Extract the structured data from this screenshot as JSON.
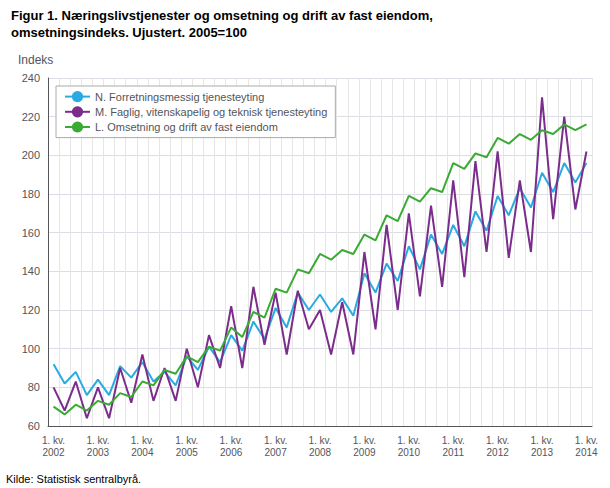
{
  "chart_data": {
    "type": "line",
    "title": "Figur 1. Næringslivstjenester og omsetning og drift av fast eiendom,",
    "subtitle": "omsetningsindeks. Ujustert. 2005=100",
    "ylabel": "Indeks",
    "annotations": [
      "Kilde: Statistisk sentralbyrå."
    ],
    "categories": [
      "1. kv.\n2002",
      null,
      null,
      null,
      "1. kv.\n2003",
      null,
      null,
      null,
      "1. kv.\n2004",
      null,
      null,
      null,
      "1. kv.\n2005",
      null,
      null,
      null,
      "1. kv.\n2006",
      null,
      null,
      null,
      "1. kv.\n2007",
      null,
      null,
      null,
      "1. kv.\n2008",
      null,
      null,
      null,
      "1. kv.\n2009",
      null,
      null,
      null,
      "1. kv.\n2010",
      null,
      null,
      null,
      "1. kv.\n2011",
      null,
      null,
      null,
      "1. kv.\n2012",
      null,
      null,
      null,
      "1. kv.\n2013",
      null,
      null,
      null,
      "1. kv.\n2014"
    ],
    "series": [
      {
        "name": "N. Forretningsmessig tjenesteyting",
        "color": "#29abe2",
        "values": [
          92,
          82,
          88,
          76,
          84,
          76,
          91,
          85,
          93,
          83,
          88,
          81,
          96,
          89,
          101,
          93,
          107,
          99,
          114,
          105,
          121,
          111,
          129,
          120,
          128,
          119,
          126,
          117,
          139,
          129,
          144,
          135,
          153,
          141,
          159,
          149,
          164,
          153,
          171,
          161,
          179,
          169,
          183,
          173,
          191,
          181,
          196,
          186,
          196
        ]
      },
      {
        "name": "M. Faglig, vitenskapelig og teknisk tjenesteyting",
        "color": "#7b2d8b",
        "values": [
          80,
          68,
          83,
          64,
          80,
          64,
          90,
          72,
          97,
          73,
          90,
          73,
          100,
          80,
          107,
          90,
          122,
          90,
          132,
          102,
          129,
          97,
          130,
          110,
          120,
          97,
          124,
          97,
          150,
          110,
          164,
          120,
          170,
          127,
          174,
          132,
          187,
          137,
          197,
          150,
          202,
          147,
          187,
          150,
          230,
          167,
          220,
          172,
          202
        ]
      },
      {
        "name": "L. Omsetning og drift av fast eiendom",
        "color": "#3aaa35",
        "values": [
          70,
          66,
          71,
          68,
          73,
          71,
          77,
          75,
          83,
          81,
          89,
          87,
          96,
          93,
          101,
          99,
          111,
          106,
          119,
          116,
          131,
          129,
          141,
          139,
          149,
          146,
          151,
          149,
          159,
          156,
          169,
          166,
          179,
          176,
          183,
          181,
          196,
          193,
          201,
          199,
          209,
          206,
          211,
          208,
          213,
          211,
          216,
          213,
          216
        ]
      }
    ],
    "ylim": [
      60,
      240
    ],
    "yticks": [
      60,
      80,
      100,
      120,
      140,
      160,
      180,
      200,
      220,
      240
    ],
    "grid": true,
    "legend": "upper left"
  }
}
